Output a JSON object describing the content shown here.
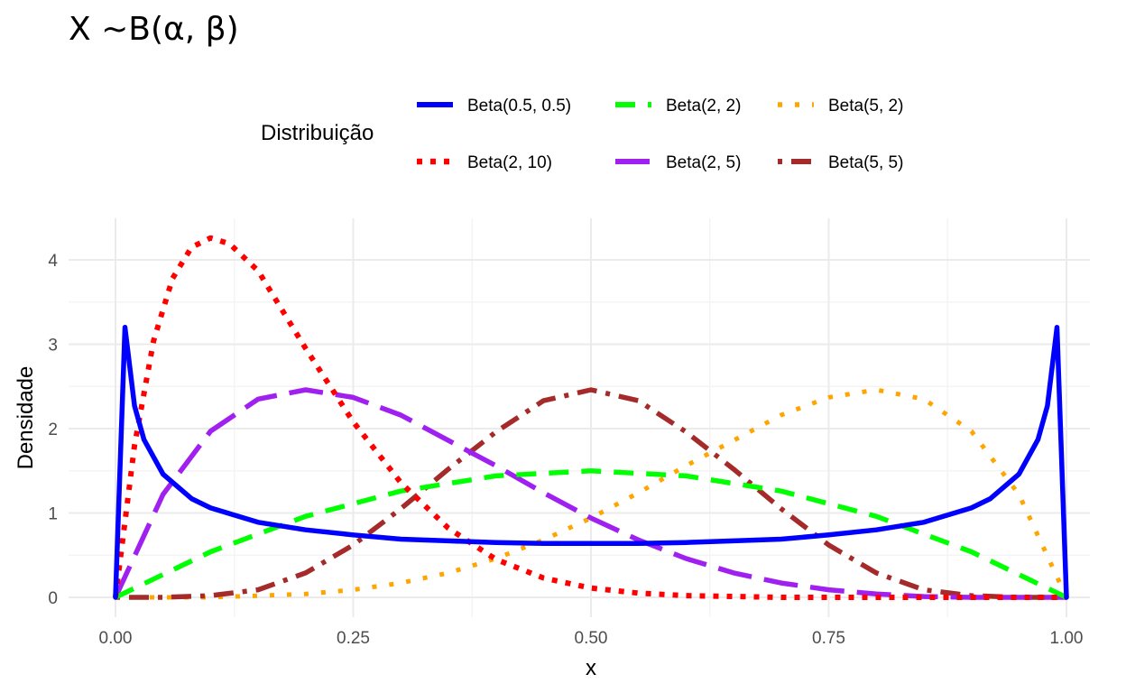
{
  "chart_data": {
    "type": "line",
    "title": "X ~B(α, β)",
    "xlabel": "x",
    "ylabel": "Densidade",
    "xlim": [
      0,
      1
    ],
    "ylim": [
      0,
      4.4
    ],
    "x_ticks": [
      "0.00",
      "0.25",
      "0.50",
      "0.75",
      "1.00"
    ],
    "y_ticks": [
      "0",
      "1",
      "2",
      "3",
      "4"
    ],
    "grid": true,
    "legend": {
      "title": "Distribuição",
      "placement": "top"
    },
    "series": [
      {
        "name": "Beta(0.5, 0.5)",
        "color": "#0000ff",
        "dash": "solid",
        "x": [
          0,
          0.01,
          0.02,
          0.03,
          0.05,
          0.08,
          0.1,
          0.15,
          0.2,
          0.25,
          0.3,
          0.35,
          0.4,
          0.45,
          0.5,
          0.55,
          0.6,
          0.65,
          0.7,
          0.75,
          0.8,
          0.85,
          0.9,
          0.92,
          0.95,
          0.97,
          0.98,
          0.99,
          1
        ],
        "y": [
          0,
          3.2,
          2.27,
          1.87,
          1.46,
          1.17,
          1.06,
          0.89,
          0.8,
          0.74,
          0.69,
          0.67,
          0.65,
          0.64,
          0.64,
          0.64,
          0.65,
          0.67,
          0.69,
          0.74,
          0.8,
          0.89,
          1.06,
          1.17,
          1.46,
          1.87,
          2.27,
          3.2,
          0
        ]
      },
      {
        "name": "Beta(2, 10)",
        "color": "#ff0000",
        "dash": "dotted",
        "x": [
          0,
          0.02,
          0.04,
          0.06,
          0.08,
          0.1,
          0.12,
          0.15,
          0.2,
          0.25,
          0.3,
          0.35,
          0.4,
          0.45,
          0.5,
          0.55,
          0.6,
          0.7,
          0.8,
          0.9,
          1
        ],
        "y": [
          0,
          1.8,
          3.04,
          3.78,
          4.15,
          4.26,
          4.19,
          3.87,
          2.95,
          2.08,
          1.36,
          0.82,
          0.45,
          0.23,
          0.11,
          0.05,
          0.02,
          0.0,
          0.0,
          0.0,
          0
        ]
      },
      {
        "name": "Beta(2, 2)",
        "color": "#00ff00",
        "dash": "dashed",
        "x": [
          0,
          0.1,
          0.2,
          0.3,
          0.4,
          0.5,
          0.6,
          0.7,
          0.8,
          0.9,
          1
        ],
        "y": [
          0,
          0.54,
          0.96,
          1.26,
          1.44,
          1.5,
          1.44,
          1.26,
          0.96,
          0.54,
          0
        ]
      },
      {
        "name": "Beta(2, 5)",
        "color": "#a020f0",
        "dash": "longdash",
        "x": [
          0,
          0.05,
          0.1,
          0.15,
          0.2,
          0.25,
          0.3,
          0.35,
          0.4,
          0.45,
          0.5,
          0.55,
          0.6,
          0.65,
          0.7,
          0.75,
          0.8,
          0.85,
          0.9,
          0.95,
          1
        ],
        "y": [
          0,
          1.22,
          1.97,
          2.35,
          2.46,
          2.37,
          2.16,
          1.86,
          1.56,
          1.24,
          0.94,
          0.68,
          0.46,
          0.29,
          0.17,
          0.09,
          0.04,
          0.01,
          0.0,
          0.0,
          0
        ]
      },
      {
        "name": "Beta(5, 2)",
        "color": "#ffa500",
        "dash": "dotted-sparse",
        "x": [
          0,
          0.1,
          0.2,
          0.25,
          0.3,
          0.35,
          0.4,
          0.45,
          0.5,
          0.55,
          0.6,
          0.65,
          0.7,
          0.75,
          0.8,
          0.85,
          0.9,
          0.95,
          1
        ],
        "y": [
          0,
          0.0,
          0.04,
          0.09,
          0.17,
          0.29,
          0.46,
          0.68,
          0.94,
          1.24,
          1.56,
          1.86,
          2.16,
          2.37,
          2.46,
          2.35,
          1.97,
          1.22,
          0
        ]
      },
      {
        "name": "Beta(5, 5)",
        "color": "#a52a2a",
        "dash": "dotdash",
        "x": [
          0,
          0.05,
          0.1,
          0.15,
          0.2,
          0.25,
          0.3,
          0.35,
          0.4,
          0.45,
          0.5,
          0.55,
          0.6,
          0.65,
          0.7,
          0.75,
          0.8,
          0.85,
          0.9,
          0.95,
          1
        ],
        "y": [
          0,
          0.0,
          0.02,
          0.09,
          0.29,
          0.62,
          1.05,
          1.52,
          1.96,
          2.33,
          2.46,
          2.33,
          1.96,
          1.52,
          1.05,
          0.62,
          0.29,
          0.09,
          0.02,
          0.0,
          0
        ]
      }
    ]
  }
}
